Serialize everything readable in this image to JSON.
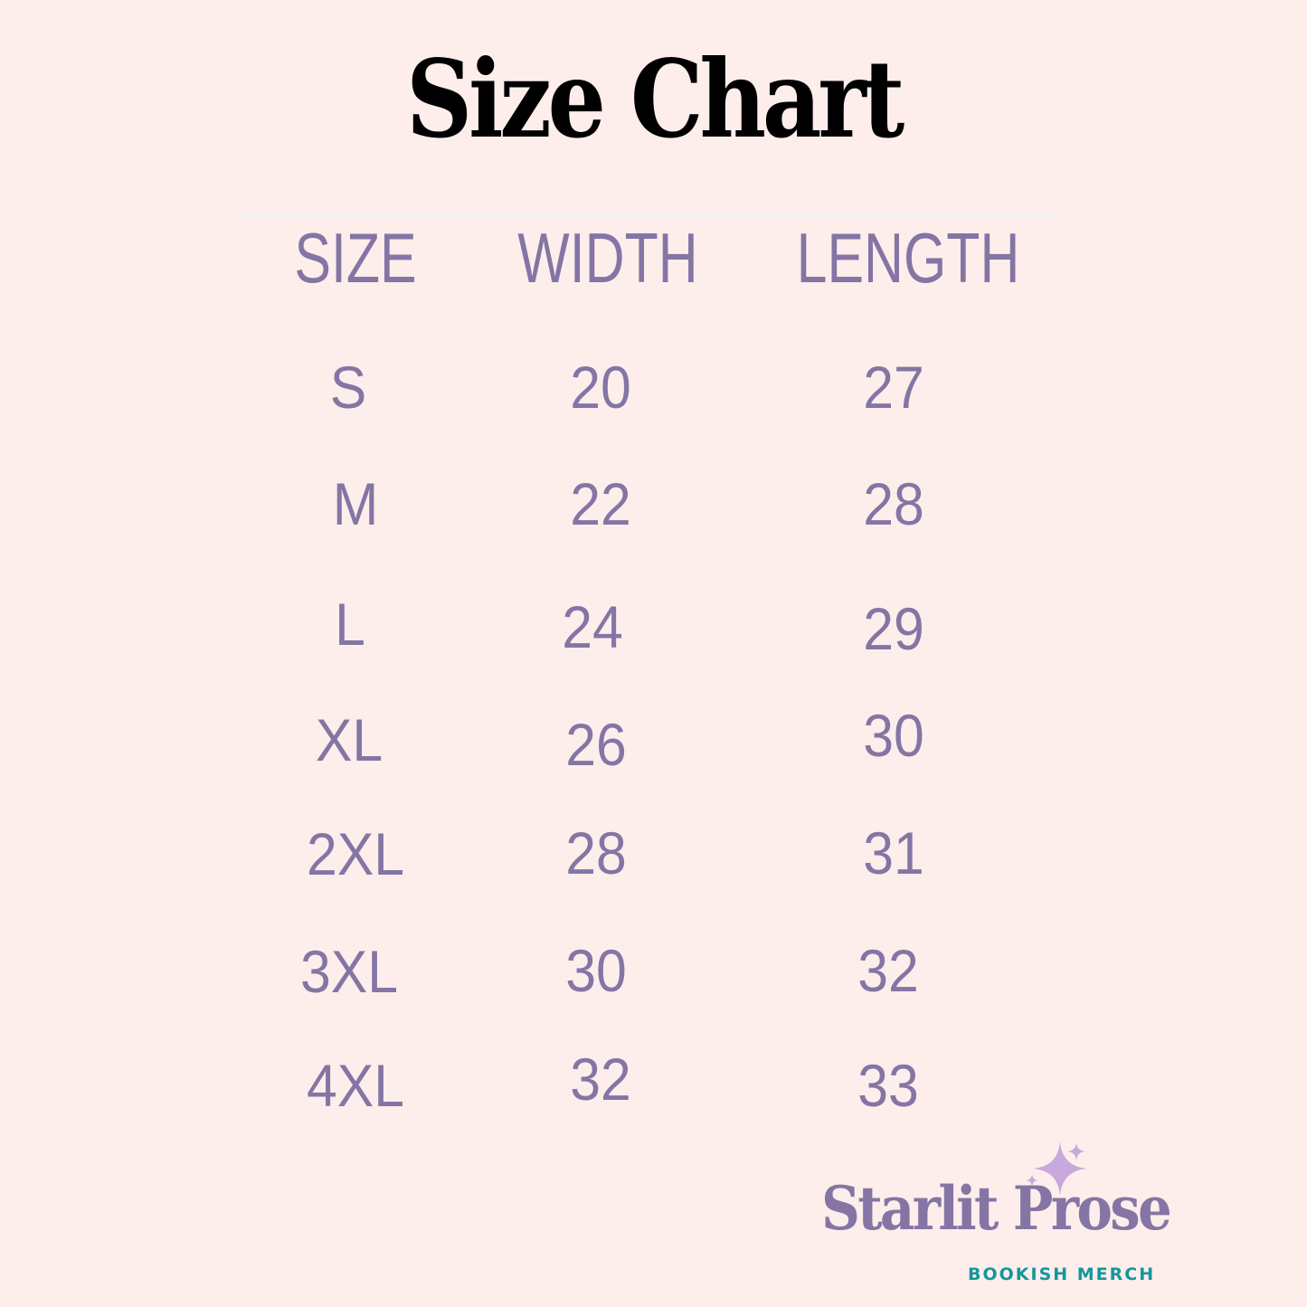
{
  "title": "Size Chart",
  "headers": [
    "SIZE",
    "WIDTH",
    "LENGTH"
  ],
  "rows": [
    {
      "size": "S",
      "width": "20",
      "length": "27"
    },
    {
      "size": "M",
      "width": "22",
      "length": "28"
    },
    {
      "size": "L",
      "width": "24",
      "length": "29"
    },
    {
      "size": "XL",
      "width": "26",
      "length": "30"
    },
    {
      "size": "2XL",
      "width": "28",
      "length": "31"
    },
    {
      "size": "3XL",
      "width": "30",
      "length": "32"
    },
    {
      "size": "4XL",
      "width": "32",
      "length": "33"
    }
  ],
  "logo": {
    "name": "Starlit Prose",
    "tagline": "BOOKISH MERCH",
    "icon": "sparkle-icon"
  },
  "colors": {
    "background": "#fdeeec",
    "text": "#8575a5",
    "title": "#000000",
    "tagline": "#13979a",
    "sparkle": "#c9a9dc"
  }
}
